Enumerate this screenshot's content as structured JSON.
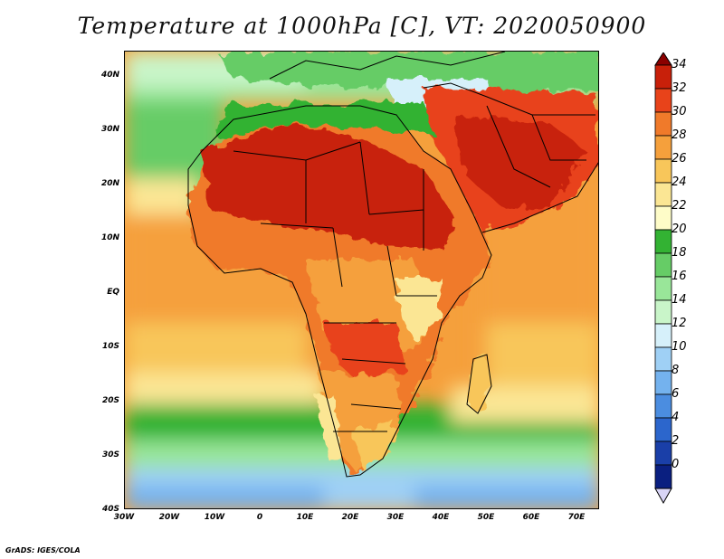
{
  "title": "Temperature at 1000hPa [C], VT: 2020050900",
  "credit": "GrADS: IGES/COLA",
  "lat_ticks": [
    "40N",
    "30N",
    "20N",
    "10N",
    "EQ",
    "10S",
    "20S",
    "30S",
    "40S"
  ],
  "lon_ticks": [
    "30W",
    "20W",
    "10W",
    "0",
    "10E",
    "20E",
    "30E",
    "40E",
    "50E",
    "60E",
    "70E"
  ],
  "colorbar": {
    "labels": [
      "34",
      "32",
      "30",
      "28",
      "26",
      "24",
      "22",
      "20",
      "18",
      "16",
      "14",
      "12",
      "10",
      "8",
      "6",
      "4",
      "2",
      "0"
    ],
    "colors": [
      "#8b0000",
      "#c8200a",
      "#e8431a",
      "#f07a2a",
      "#f5a03c",
      "#f8c65a",
      "#fbe694",
      "#fefcc8",
      "#33b233",
      "#66cc66",
      "#99e699",
      "#c9f5c9",
      "#d6f0fa",
      "#9fd0f5",
      "#74b2ee",
      "#4b8de0",
      "#2c66cc",
      "#1a3fa8",
      "#0a1f80",
      "#080a4e"
    ]
  },
  "map": {
    "extent": {
      "lon": [
        -30,
        75
      ],
      "lat": [
        -40,
        45
      ]
    },
    "field": "temperature",
    "units": "C",
    "colormap": "green-yellow-orange-red",
    "land": "Africa"
  }
}
